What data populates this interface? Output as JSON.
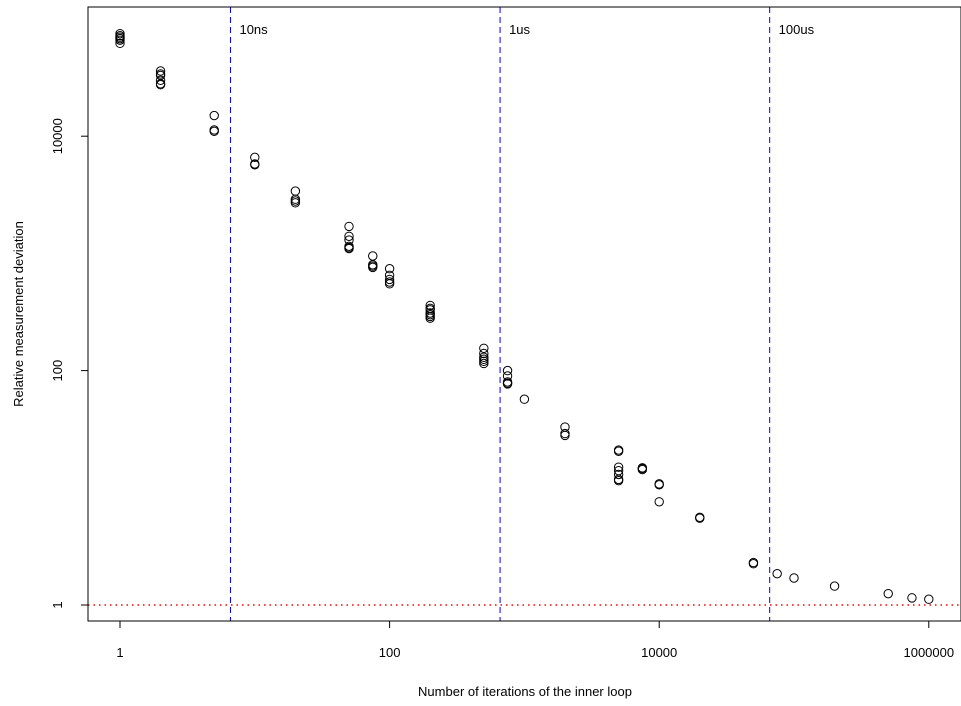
{
  "chart_data": {
    "type": "scatter",
    "title": "",
    "xlabel": "Number of iterations of the inner loop",
    "ylabel": "Relative measurement deviation",
    "x_scale": "log",
    "y_scale": "log",
    "xlim": [
      0.78,
      1600000
    ],
    "ylim": [
      0.8,
      100000
    ],
    "x_ticks": [
      1,
      100,
      10000,
      1000000
    ],
    "x_tick_labels": [
      "1",
      "100",
      "10000",
      "1000000"
    ],
    "y_ticks": [
      1,
      100,
      10000
    ],
    "y_tick_labels": [
      "1",
      "100",
      "10000"
    ],
    "grid": false,
    "legend": "none",
    "marker": "open-circle",
    "reference_lines": [
      {
        "orientation": "vertical",
        "x": 6.6,
        "label": "10ns",
        "color": "#0000ff",
        "style": "dashed"
      },
      {
        "orientation": "vertical",
        "x": 660,
        "label": "1us",
        "color": "#0000ff",
        "style": "dashed"
      },
      {
        "orientation": "vertical",
        "x": 66000,
        "label": "100us",
        "color": "#0000ff",
        "style": "dashed"
      },
      {
        "orientation": "horizontal",
        "y": 1,
        "label": "",
        "color": "#ff0000",
        "style": "dotted"
      }
    ],
    "series": [
      {
        "points": [
          [
            1,
            70000
          ],
          [
            1,
            66000
          ],
          [
            1,
            62000
          ],
          [
            1,
            75000
          ],
          [
            1,
            72000
          ],
          [
            1,
            68000
          ],
          [
            2,
            36000
          ],
          [
            2,
            33000
          ],
          [
            2,
            30000
          ],
          [
            2,
            28000
          ],
          [
            2,
            27500
          ],
          [
            2,
            34000
          ],
          [
            5,
            15000
          ],
          [
            5,
            11000
          ],
          [
            5,
            11300
          ],
          [
            10,
            6600
          ],
          [
            10,
            5800
          ],
          [
            10,
            5700
          ],
          [
            20,
            3400
          ],
          [
            20,
            2800
          ],
          [
            20,
            2700
          ],
          [
            20,
            2900
          ],
          [
            50,
            1700
          ],
          [
            50,
            1400
          ],
          [
            50,
            1300
          ],
          [
            50,
            1150
          ],
          [
            50,
            1100
          ],
          [
            50,
            1120
          ],
          [
            75,
            950
          ],
          [
            75,
            780
          ],
          [
            75,
            760
          ],
          [
            75,
            800
          ],
          [
            100,
            740
          ],
          [
            100,
            650
          ],
          [
            100,
            570
          ],
          [
            100,
            550
          ],
          [
            100,
            600
          ],
          [
            200,
            360
          ],
          [
            200,
            330
          ],
          [
            200,
            300
          ],
          [
            200,
            280
          ],
          [
            200,
            290
          ],
          [
            200,
            340
          ],
          [
            200,
            310
          ],
          [
            500,
            155
          ],
          [
            500,
            140
          ],
          [
            500,
            125
          ],
          [
            500,
            115
          ],
          [
            500,
            120
          ],
          [
            500,
            130
          ],
          [
            750,
            100
          ],
          [
            750,
            90
          ],
          [
            750,
            78
          ],
          [
            750,
            77
          ],
          [
            750,
            80
          ],
          [
            1000,
            57
          ],
          [
            2000,
            33
          ],
          [
            2000,
            28
          ],
          [
            2000,
            29
          ],
          [
            5000,
            21
          ],
          [
            5000,
            20.5
          ],
          [
            5000,
            15
          ],
          [
            5000,
            14
          ],
          [
            5000,
            13
          ],
          [
            5000,
            11.5
          ],
          [
            5000,
            11.8
          ],
          [
            7500,
            14.3
          ],
          [
            7500,
            14.8
          ],
          [
            7500,
            14.6
          ],
          [
            10000,
            10.8
          ],
          [
            10000,
            10.6
          ],
          [
            10000,
            7.6
          ],
          [
            20000,
            5.5
          ],
          [
            20000,
            5.6
          ],
          [
            50000,
            2.25
          ],
          [
            50000,
            2.3
          ],
          [
            75000,
            1.85
          ],
          [
            100000,
            1.7
          ],
          [
            200000,
            1.45
          ],
          [
            500000,
            1.25
          ],
          [
            750000,
            1.15
          ],
          [
            1000000,
            1.12
          ]
        ]
      }
    ]
  }
}
